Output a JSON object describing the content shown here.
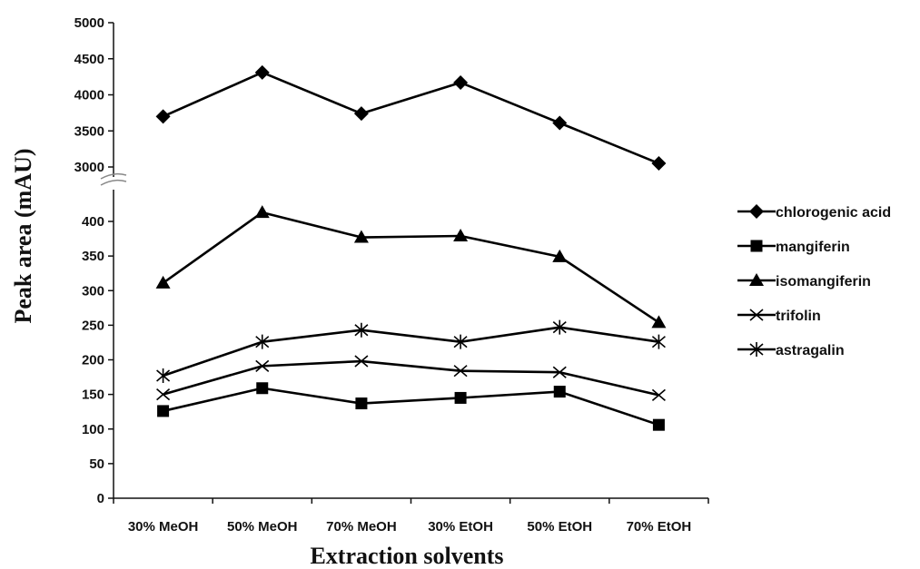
{
  "chart_data": {
    "type": "line",
    "title": "",
    "xlabel": "Extraction solvents",
    "ylabel": "Peak area (mAU)",
    "categories": [
      "30% MeOH",
      "50% MeOH",
      "70% MeOH",
      "30% EtOH",
      "50% EtOH",
      "70% EtOH"
    ],
    "y_axis_break": {
      "lower_range": [
        0,
        400
      ],
      "upper_range": [
        3000,
        5000
      ]
    },
    "lower_ticks": [
      0,
      50,
      100,
      150,
      200,
      250,
      300,
      350,
      400
    ],
    "upper_ticks": [
      3000,
      3500,
      4000,
      4500,
      5000
    ],
    "grid": false,
    "legend_position": "right",
    "series": [
      {
        "name": "chlorogenic acid",
        "marker": "diamond",
        "values": [
          3700,
          4310,
          3740,
          4170,
          3610,
          3050
        ]
      },
      {
        "name": "mangiferin",
        "marker": "square",
        "values": [
          126,
          159,
          137,
          145,
          154,
          106
        ]
      },
      {
        "name": "isomangiferin",
        "marker": "triangle",
        "values": [
          311,
          413,
          377,
          379,
          349,
          254
        ]
      },
      {
        "name": "trifolin",
        "marker": "x",
        "values": [
          150,
          191,
          198,
          184,
          182,
          149
        ]
      },
      {
        "name": "astragalin",
        "marker": "star",
        "values": [
          177,
          226,
          243,
          226,
          247,
          226
        ]
      }
    ]
  }
}
